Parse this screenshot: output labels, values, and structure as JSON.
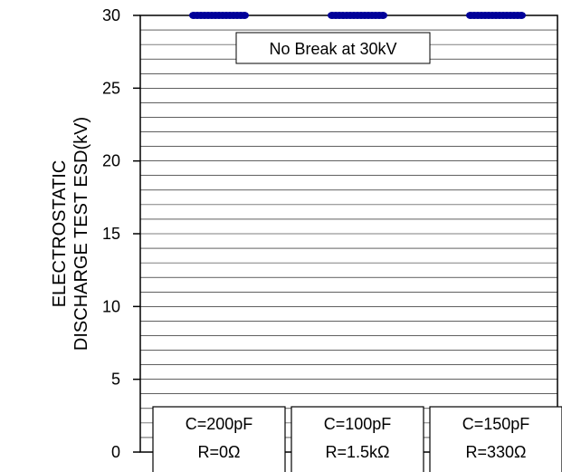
{
  "chart_data": {
    "type": "scatter",
    "title": "",
    "ylabel_lines": [
      "ELECTROSTATIC",
      "DISCHARGE TEST ESD(kV)"
    ],
    "ylim": [
      0,
      30
    ],
    "yticks": [
      0,
      5,
      10,
      15,
      20,
      25,
      30
    ],
    "ytick_labels": [
      "0",
      "5",
      "10",
      "15",
      "20",
      "25",
      "30"
    ],
    "grid": true,
    "grid_step": 1,
    "annotation": "No Break at 30kV",
    "groups": [
      {
        "capacitance": "C=200pF",
        "resistance": "R=0Ω",
        "values": [
          30,
          30,
          30,
          30,
          30,
          30,
          30,
          30,
          30,
          30,
          30,
          30,
          30,
          30,
          30
        ]
      },
      {
        "capacitance": "C=100pF",
        "resistance": "R=1.5kΩ",
        "values": [
          30,
          30,
          30,
          30,
          30,
          30,
          30,
          30,
          30,
          30,
          30,
          30,
          30,
          30,
          30
        ]
      },
      {
        "capacitance": "C=150pF",
        "resistance": "R=330Ω",
        "values": [
          30,
          30,
          30,
          30,
          30,
          30,
          30,
          30,
          30,
          30,
          30,
          30,
          30,
          30,
          30
        ]
      }
    ],
    "marker_color": "#000099"
  }
}
